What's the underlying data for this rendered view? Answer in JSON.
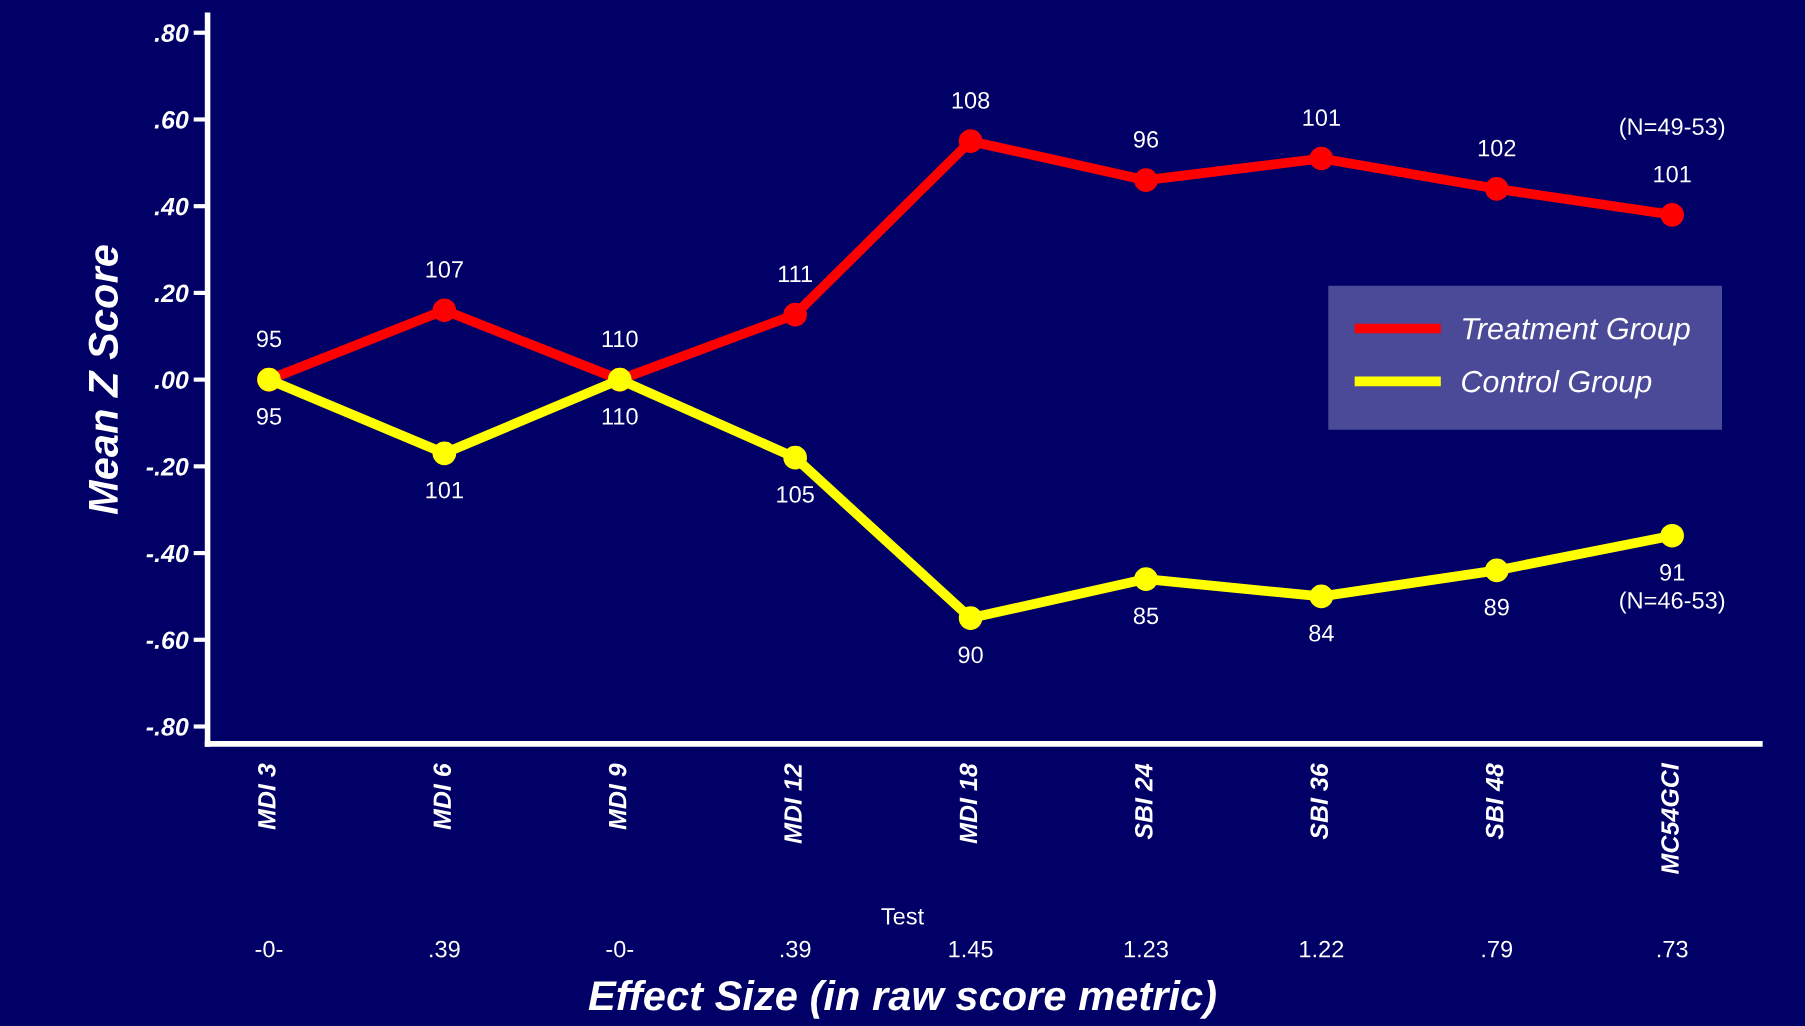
{
  "chart_data": {
    "type": "line",
    "ylabel": "Mean Z Score",
    "xlabel": "Test",
    "categories": [
      "MDI 3",
      "MDI 6",
      "MDI 9",
      "MDI 12",
      "MDI 18",
      "SBI 24",
      "SBI 36",
      "SBI 48",
      "MC54GCI"
    ],
    "series": [
      {
        "name": "Treatment Group",
        "color": "#ff0000",
        "values": [
          0,
          0.16,
          0,
          0.15,
          0.55,
          0.46,
          0.51,
          0.44,
          0.38
        ]
      },
      {
        "name": "Control Group",
        "color": "#ffff00",
        "values": [
          0,
          -0.17,
          0,
          -0.18,
          -0.55,
          -0.46,
          -0.5,
          -0.44,
          -0.36
        ]
      }
    ],
    "ylim": [
      -0.84,
      0.84
    ],
    "yticks": [
      {
        "value": -0.8,
        "label": "-.80"
      },
      {
        "value": -0.6,
        "label": "-.60"
      },
      {
        "value": -0.4,
        "label": "-.40"
      },
      {
        "value": -0.2,
        "label": "-.20"
      },
      {
        "value": 0,
        "label": ".00"
      },
      {
        "value": 0.2,
        "label": ".20"
      },
      {
        "value": 0.4,
        "label": ".40"
      },
      {
        "value": 0.6,
        "label": ".60"
      },
      {
        "value": 0.8,
        "label": ".80"
      }
    ],
    "annotations": [
      "-0-",
      ".39",
      "-0-",
      ".39",
      "1.45",
      "1.23",
      "1.22",
      ".79",
      ".73",
      "Effect Size (in raw score metric)",
      "(N=49-53)",
      "(N=46-53)",
      {
        "text": "95",
        "x": "MDI 3",
        "y": 0
      },
      {
        "text": "107",
        "x": "MDI 6",
        "y": 0.16
      },
      {
        "text": "110",
        "x": "MDI 9",
        "y": 0
      },
      {
        "text": "111",
        "x": "MDI 12",
        "y": 0.15
      },
      {
        "text": "108",
        "x": "MDI 18",
        "y": 0.55
      },
      {
        "text": "96",
        "x": "SBI 24",
        "y": 0.46
      },
      {
        "text": "101",
        "x": "SBI 36",
        "y": 0.51
      },
      {
        "text": "102",
        "x": "SBI 48",
        "y": 0.44
      },
      {
        "text": "101",
        "x": "MC54GCI",
        "y": 0.38
      },
      {
        "text": "95",
        "x": "MDI 3",
        "y": 0
      },
      {
        "text": "101",
        "x": "MDI 6",
        "y": -0.17
      },
      {
        "text": "110",
        "x": "MDI 9",
        "y": 0
      },
      {
        "text": "105",
        "x": "MDI 12",
        "y": -0.18
      },
      {
        "text": "90",
        "x": "MDI 18",
        "y": -0.55
      },
      {
        "text": "85",
        "x": "SBI 24",
        "y": -0.46
      },
      {
        "text": "84",
        "x": "SBI 36",
        "y": -0.5
      },
      {
        "text": "89",
        "x": "SBI 48",
        "y": -0.44
      },
      {
        "text": "91",
        "x": "MC54GCI",
        "y": -0.36
      }
    ],
    "marker": "circle",
    "line_style": "solid",
    "grid": false,
    "legend": "right"
  }
}
